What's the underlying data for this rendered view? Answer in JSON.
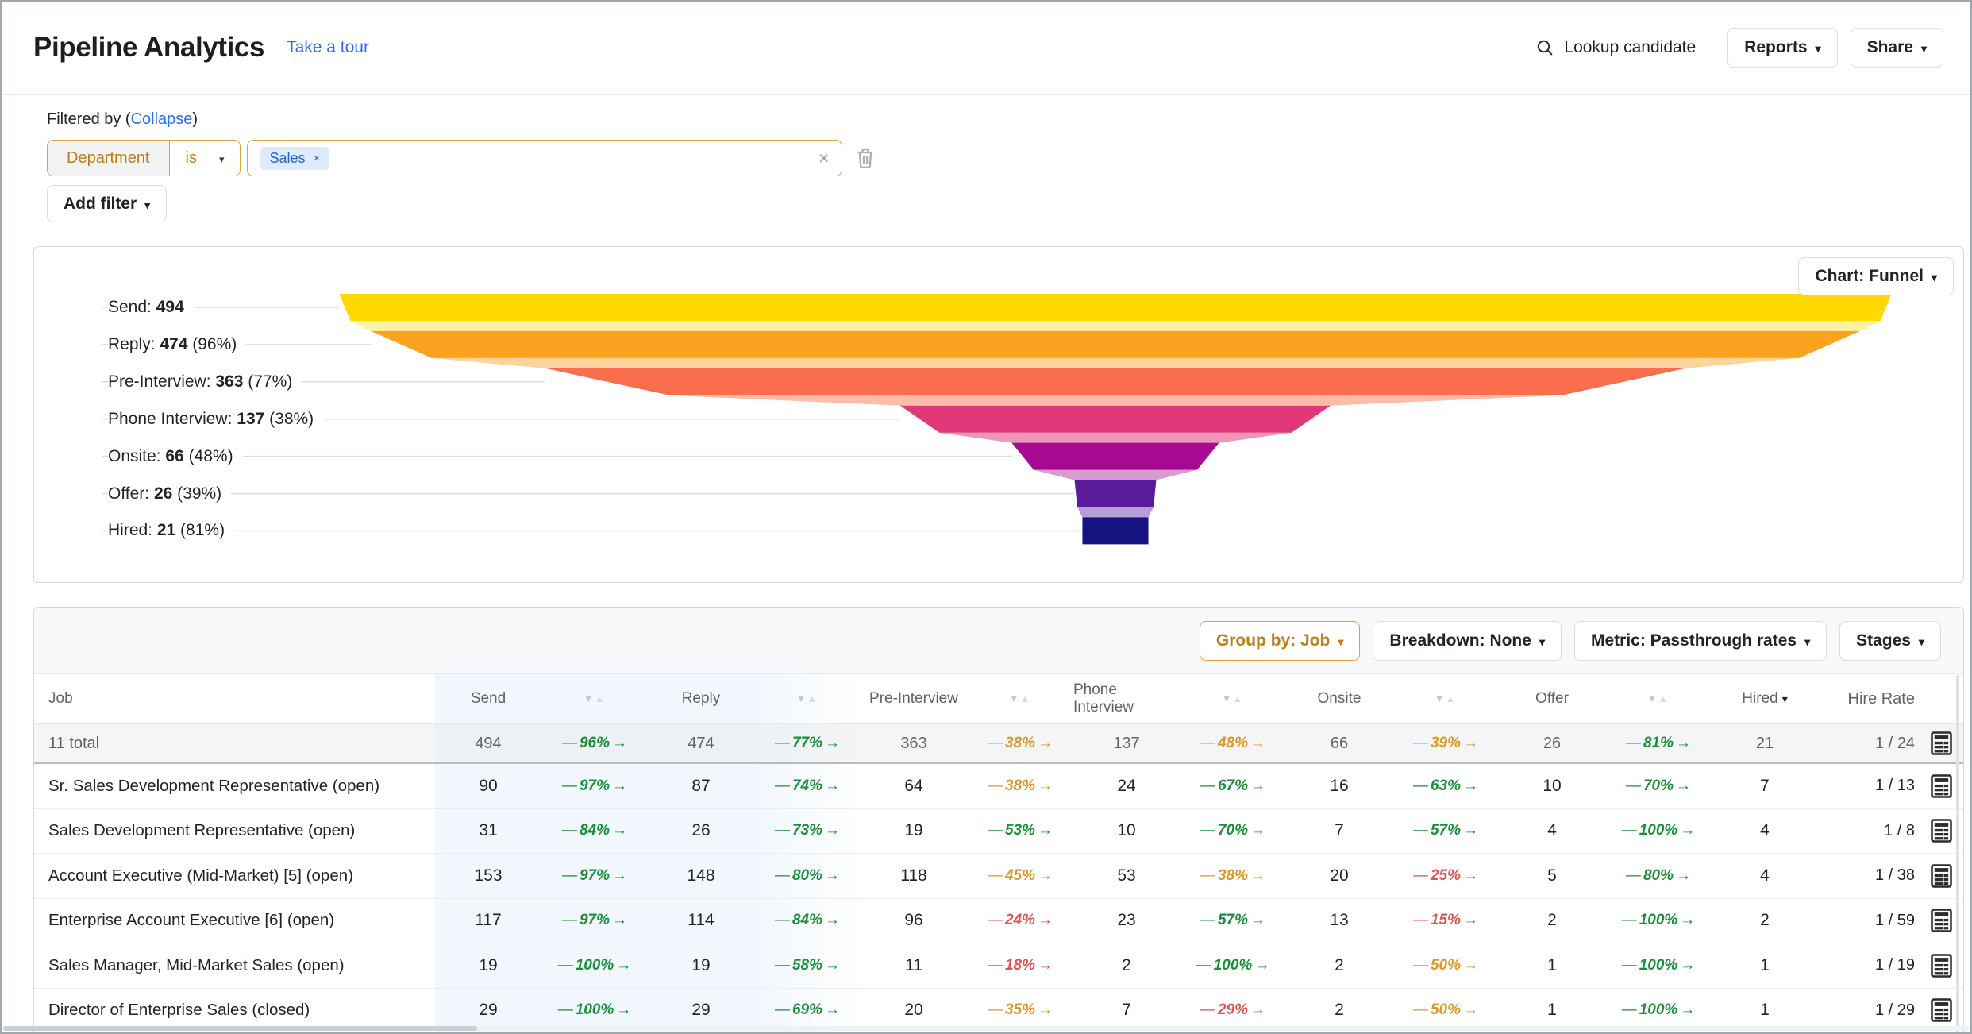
{
  "colors": {
    "accent_orange_text": "#BE7E17",
    "accent_orange_border": "#D8A440",
    "link_blue": "#2B6FE8",
    "pass_good": "#1A9036",
    "pass_mid": "#DC9726",
    "pass_bad": "#DE5454",
    "connector_line": "#D8DBDF"
  },
  "header": {
    "title": "Pipeline Analytics",
    "tour_link": "Take a tour",
    "lookup": "Lookup candidate",
    "reports_button": "Reports",
    "share_button": "Share"
  },
  "filters": {
    "label_prefix": "Filtered by (",
    "collapse_link": "Collapse",
    "label_suffix": ")",
    "field": "Department",
    "operator": "is",
    "tags": [
      "Sales"
    ],
    "tag_remove": "×",
    "clear": "×",
    "add_filter_button": "Add filter"
  },
  "chart_card": {
    "chart_selector": "Chart: Funnel"
  },
  "chart_data": {
    "type": "funnel",
    "stages": [
      {
        "label": "Send",
        "value": 494,
        "pct_of_prev": null,
        "color": "#FFD900",
        "transition_color": "#FBF2A4"
      },
      {
        "label": "Reply",
        "value": 474,
        "pct_of_prev": "96%",
        "color": "#FBA321",
        "transition_color": "#FCD49C"
      },
      {
        "label": "Pre-Interview",
        "value": 363,
        "pct_of_prev": "77%",
        "color": "#FA6E4D",
        "transition_color": "#FBBCA8"
      },
      {
        "label": "Phone Interview",
        "value": 137,
        "pct_of_prev": "38%",
        "color": "#E03878",
        "transition_color": "#EE96B9"
      },
      {
        "label": "Onsite",
        "value": 66,
        "pct_of_prev": "48%",
        "color": "#A70A92",
        "transition_color": "#D79BD2"
      },
      {
        "label": "Offer",
        "value": 26,
        "pct_of_prev": "39%",
        "color": "#5B1B9B",
        "transition_color": "#B3A0D6"
      },
      {
        "label": "Hired",
        "value": 21,
        "pct_of_prev": "81%",
        "color": "#161280",
        "transition_color": null
      }
    ]
  },
  "table": {
    "controls": [
      {
        "label": "Group by: Job",
        "accent": true
      },
      {
        "label": "Breakdown: None",
        "accent": false
      },
      {
        "label": "Metric: Passthrough rates",
        "accent": false
      },
      {
        "label": "Stages",
        "accent": false
      }
    ],
    "columns": [
      "Job",
      "Send",
      "Reply",
      "Pre-Interview",
      "Phone Interview",
      "Onsite",
      "Offer",
      "Hired",
      "Hire Rate"
    ],
    "sort": {
      "column": "Hired",
      "direction": "desc"
    },
    "total_row": {
      "job": "11 total",
      "values": [
        494,
        474,
        363,
        137,
        66,
        26,
        21
      ],
      "pass": [
        {
          "pct": "96%",
          "level": "good"
        },
        {
          "pct": "77%",
          "level": "good"
        },
        {
          "pct": "38%",
          "level": "mid"
        },
        {
          "pct": "48%",
          "level": "mid"
        },
        {
          "pct": "39%",
          "level": "mid"
        },
        {
          "pct": "81%",
          "level": "good"
        }
      ],
      "hire_rate": "1 / 24"
    },
    "rows": [
      {
        "job": "Sr. Sales Development Representative (open)",
        "values": [
          90,
          87,
          64,
          24,
          16,
          10,
          7
        ],
        "pass": [
          {
            "pct": "97%",
            "level": "good"
          },
          {
            "pct": "74%",
            "level": "good"
          },
          {
            "pct": "38%",
            "level": "mid"
          },
          {
            "pct": "67%",
            "level": "good"
          },
          {
            "pct": "63%",
            "level": "good"
          },
          {
            "pct": "70%",
            "level": "good"
          }
        ],
        "hire_rate": "1 / 13"
      },
      {
        "job": "Sales Development Representative (open)",
        "values": [
          31,
          26,
          19,
          10,
          7,
          4,
          4
        ],
        "pass": [
          {
            "pct": "84%",
            "level": "good"
          },
          {
            "pct": "73%",
            "level": "good"
          },
          {
            "pct": "53%",
            "level": "good"
          },
          {
            "pct": "70%",
            "level": "good"
          },
          {
            "pct": "57%",
            "level": "good"
          },
          {
            "pct": "100%",
            "level": "good"
          }
        ],
        "hire_rate": "1 / 8"
      },
      {
        "job": "Account Executive (Mid-Market) [5] (open)",
        "values": [
          153,
          148,
          118,
          53,
          20,
          5,
          4
        ],
        "pass": [
          {
            "pct": "97%",
            "level": "good"
          },
          {
            "pct": "80%",
            "level": "good"
          },
          {
            "pct": "45%",
            "level": "mid"
          },
          {
            "pct": "38%",
            "level": "mid"
          },
          {
            "pct": "25%",
            "level": "bad"
          },
          {
            "pct": "80%",
            "level": "good"
          }
        ],
        "hire_rate": "1 / 38"
      },
      {
        "job": "Enterprise Account Executive [6] (open)",
        "values": [
          117,
          114,
          96,
          23,
          13,
          2,
          2
        ],
        "pass": [
          {
            "pct": "97%",
            "level": "good"
          },
          {
            "pct": "84%",
            "level": "good"
          },
          {
            "pct": "24%",
            "level": "bad"
          },
          {
            "pct": "57%",
            "level": "good"
          },
          {
            "pct": "15%",
            "level": "bad"
          },
          {
            "pct": "100%",
            "level": "good"
          }
        ],
        "hire_rate": "1 / 59"
      },
      {
        "job": "Sales Manager, Mid-Market Sales (open)",
        "values": [
          19,
          19,
          11,
          2,
          2,
          1,
          1
        ],
        "pass": [
          {
            "pct": "100%",
            "level": "good"
          },
          {
            "pct": "58%",
            "level": "good"
          },
          {
            "pct": "18%",
            "level": "bad"
          },
          {
            "pct": "100%",
            "level": "good"
          },
          {
            "pct": "50%",
            "level": "mid"
          },
          {
            "pct": "100%",
            "level": "good"
          }
        ],
        "hire_rate": "1 / 19"
      },
      {
        "job": "Director of Enterprise Sales (closed)",
        "values": [
          29,
          29,
          20,
          7,
          2,
          1,
          1
        ],
        "pass": [
          {
            "pct": "100%",
            "level": "good"
          },
          {
            "pct": "69%",
            "level": "good"
          },
          {
            "pct": "35%",
            "level": "mid"
          },
          {
            "pct": "29%",
            "level": "bad"
          },
          {
            "pct": "50%",
            "level": "mid"
          },
          {
            "pct": "100%",
            "level": "good"
          }
        ],
        "hire_rate": "1 / 29"
      }
    ]
  }
}
